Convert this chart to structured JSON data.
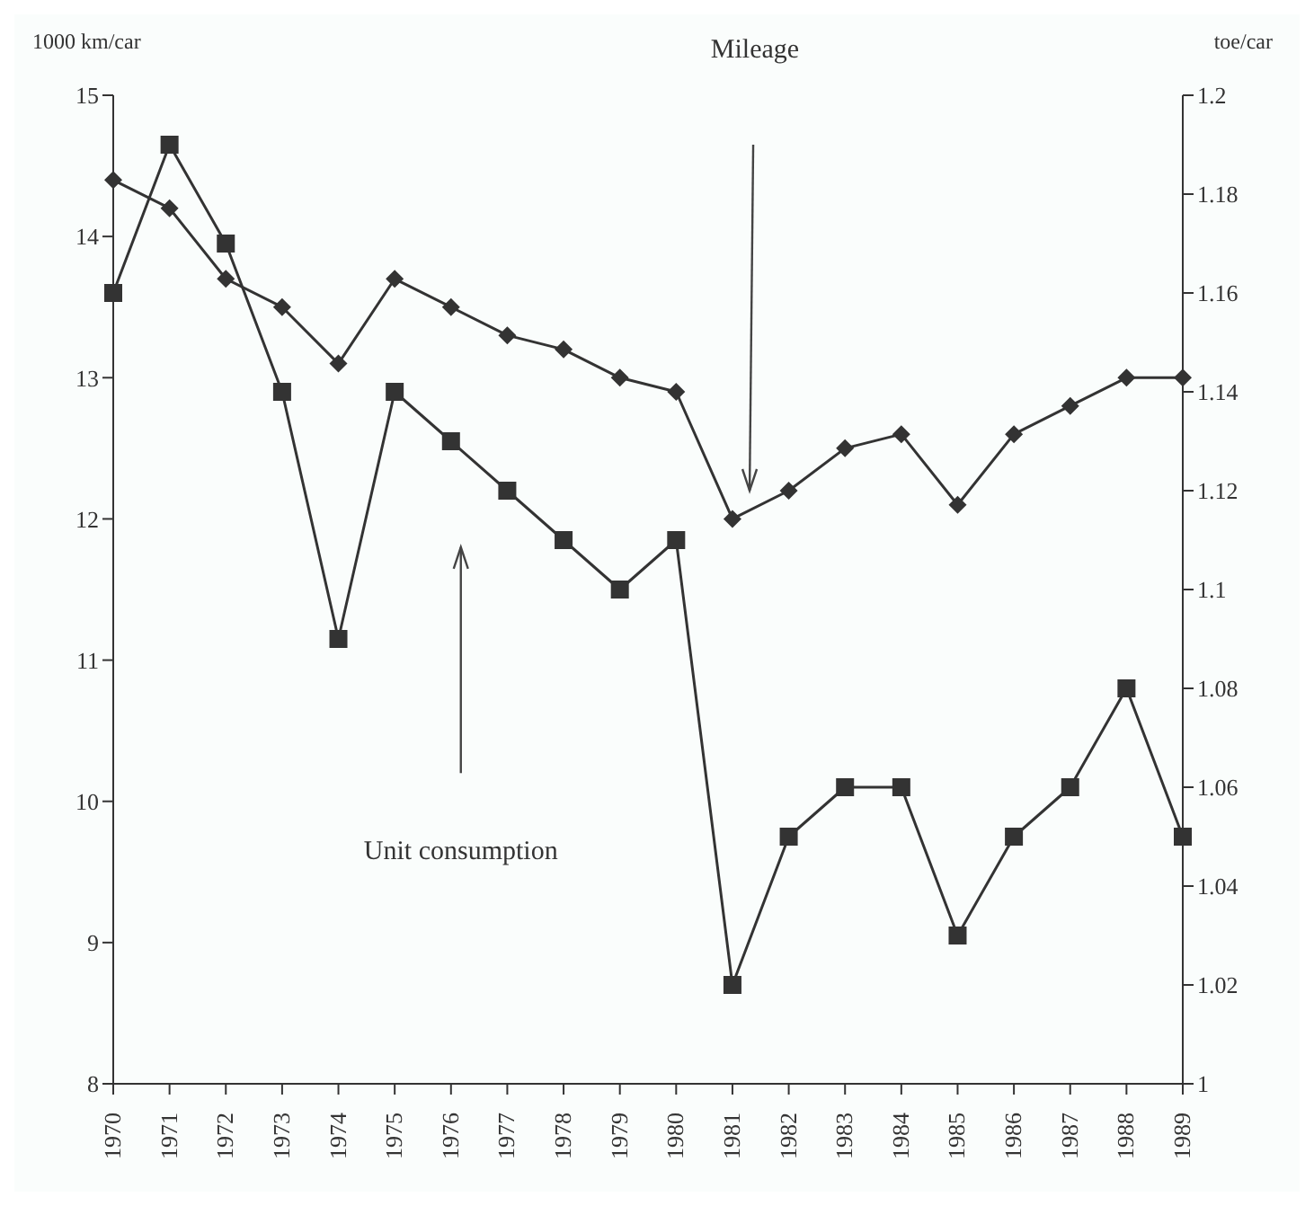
{
  "chart_data": {
    "type": "line",
    "ylabel": "1000 km/car",
    "y2label": "toe/car",
    "categories": [
      "1970",
      "1971",
      "1972",
      "1973",
      "1974",
      "1975",
      "1976",
      "1977",
      "1978",
      "1979",
      "1980",
      "1981",
      "1982",
      "1983",
      "1984",
      "1985",
      "1986",
      "1987",
      "1988",
      "1989"
    ],
    "series": [
      {
        "color": "#333333",
        "marker": "diamond",
        "values": [
          14.4,
          14.2,
          13.7,
          13.5,
          13.1,
          13.7,
          13.5,
          13.3,
          13.2,
          13.0,
          12.9,
          12.0,
          12.2,
          12.5,
          12.6,
          12.1,
          12.6,
          12.8,
          13.0,
          13.0
        ]
      },
      {
        "color": "#333333",
        "marker": "square",
        "axis": "y2",
        "values": [
          1.16,
          1.19,
          1.17,
          1.14,
          1.09,
          1.14,
          1.13,
          1.12,
          1.11,
          1.1,
          1.11,
          1.02,
          1.05,
          1.06,
          1.06,
          1.03,
          1.05,
          1.06,
          1.08,
          1.05
        ]
      }
    ],
    "ylim": [
      8,
      15
    ],
    "yticks": [
      8,
      9,
      10,
      11,
      12,
      13,
      14,
      15
    ],
    "y2lim": [
      1,
      1.2
    ],
    "y2ticks": [
      1,
      1.02,
      1.04,
      1.06,
      1.08,
      1.1,
      1.12,
      1.14,
      1.16,
      1.18,
      1.2
    ],
    "annotations": [
      "Mileage",
      "Unit consumption"
    ],
    "grid": false,
    "legend": false
  }
}
